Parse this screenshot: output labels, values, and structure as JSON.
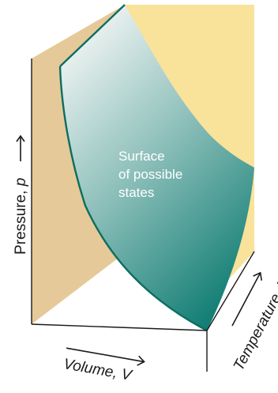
{
  "diagram": {
    "surface_label_lines": [
      "Surface",
      "of possible",
      "states"
    ],
    "axes": {
      "pressure": {
        "label": "Pressure, ",
        "symbol": "p"
      },
      "volume": {
        "label": "Volume, ",
        "symbol": "V"
      },
      "temperature": {
        "label": "Temperature, ",
        "symbol": "T"
      }
    },
    "colors": {
      "back_wall": "#e6c998",
      "side_wall": "#f9e29a",
      "surface_top": "#f2f6f5",
      "surface_bottom": "#0a7a70",
      "surface_edge": "#0c6e60",
      "frame_line": "#1a1a1a"
    }
  }
}
